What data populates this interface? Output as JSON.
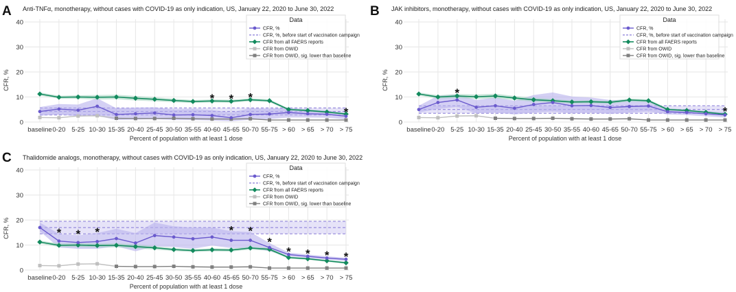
{
  "figure": {
    "x_label": "Percent of population with at least 1 dose",
    "y_label": "CFR, %",
    "legend_title": "Data",
    "legend_items": [
      "CFR, %",
      "CFR, %, before start of vaccination campaign",
      "CFR from all FAERS reports",
      "CFR from OWID",
      "CFR from OWID, sig. lower than baseline"
    ],
    "star_symbol": "*"
  },
  "colors": {
    "cfr": "#6a5acd",
    "cfr_band": "#b7b0ec",
    "faers": "#138a5e",
    "faers_band": "#9fd1bb",
    "owid_light": "#bfbfbf",
    "owid_dark": "#808080"
  },
  "chart_data": [
    {
      "panel": "A",
      "type": "line",
      "title": "Anti-TNFα, monotherapy, without cases with COVID-19 as only indication, US, January 22, 2020 to June 30, 2022",
      "categories": [
        "baseline",
        "0-20",
        "5-25",
        "10-30",
        "15-35",
        "20-40",
        "25-45",
        "30-50",
        "35-55",
        "40-60",
        "45-65",
        "50-70",
        "55-75",
        "> 60",
        "> 65",
        "> 70",
        "> 75"
      ],
      "ylim": [
        0,
        40
      ],
      "yticks": [
        0,
        10,
        20,
        30,
        40
      ],
      "baseline_band": [
        2.8,
        5.6
      ],
      "baseline_line": 4.2,
      "series": [
        {
          "name": "CFR, %",
          "values": [
            4.2,
            5.2,
            4.7,
            6.3,
            3.0,
            3.3,
            3.6,
            2.8,
            2.9,
            2.6,
            1.7,
            3.0,
            3.2,
            3.8,
            3.3,
            3.1,
            2.3
          ],
          "lower": [
            2.5,
            3.0,
            2.2,
            2.5,
            0.8,
            1.0,
            1.2,
            0.8,
            0.8,
            0.6,
            0.3,
            0.9,
            1.2,
            1.8,
            1.8,
            1.7,
            1.1
          ],
          "upper": [
            6.0,
            7.2,
            7.0,
            9.5,
            5.5,
            5.8,
            5.9,
            5.0,
            5.2,
            4.8,
            3.8,
            5.5,
            5.3,
            5.6,
            5.0,
            4.6,
            3.6
          ]
        },
        {
          "name": "CFR from all FAERS reports",
          "values": [
            11.2,
            9.9,
            10.0,
            9.9,
            10.0,
            9.5,
            9.1,
            8.6,
            8.2,
            8.4,
            8.3,
            8.9,
            8.5,
            5.0,
            4.6,
            4.0,
            3.2
          ],
          "lower": [
            10.6,
            9.3,
            9.3,
            9.0,
            9.1,
            8.6,
            8.3,
            7.9,
            7.6,
            7.8,
            7.7,
            8.3,
            7.9,
            4.6,
            4.2,
            3.6,
            2.8
          ],
          "upper": [
            11.8,
            10.5,
            10.7,
            10.8,
            10.9,
            10.4,
            9.9,
            9.3,
            8.8,
            9.0,
            8.9,
            9.5,
            9.1,
            5.4,
            5.0,
            4.4,
            3.6
          ]
        },
        {
          "name": "CFR from OWID",
          "values": [
            1.8,
            1.7,
            2.4,
            2.5,
            null,
            null,
            null,
            null,
            null,
            null,
            null,
            null,
            null,
            null,
            null,
            null,
            null
          ]
        },
        {
          "name": "CFR from OWID, sig. lower than baseline",
          "values": [
            null,
            null,
            null,
            null,
            1.5,
            1.4,
            1.4,
            1.5,
            1.3,
            1.2,
            1.2,
            1.3,
            0.8,
            0.8,
            0.8,
            0.8,
            0.8
          ]
        }
      ],
      "stars": [
        "40-60",
        "45-65",
        "50-70",
        "> 75"
      ]
    },
    {
      "panel": "B",
      "type": "line",
      "title": "JAK inhibitors, monotherapy, without cases with COVID-19 as only indication, US, January 22, 2020 to June 30, 2022",
      "categories": [
        "baseline",
        "0-20",
        "5-25",
        "10-30",
        "15-35",
        "20-40",
        "25-45",
        "30-50",
        "35-55",
        "40-60",
        "45-65",
        "50-70",
        "55-75",
        "> 60",
        "> 65",
        "> 70",
        "> 75"
      ],
      "ylim": [
        0,
        40
      ],
      "yticks": [
        0,
        10,
        20,
        30,
        40
      ],
      "baseline_band": [
        3.5,
        6.5
      ],
      "baseline_line": 5.0,
      "series": [
        {
          "name": "CFR, %",
          "values": [
            5.0,
            7.8,
            8.8,
            5.9,
            6.5,
            5.5,
            7.0,
            7.8,
            6.5,
            6.6,
            5.8,
            6.2,
            6.4,
            4.1,
            3.8,
            3.3,
            2.8
          ],
          "lower": [
            3.8,
            5.2,
            6.0,
            3.5,
            3.8,
            3.0,
            3.8,
            4.2,
            3.5,
            3.8,
            3.2,
            3.8,
            4.2,
            3.0,
            2.8,
            2.3,
            1.8
          ],
          "upper": [
            6.5,
            10.5,
            11.0,
            8.8,
            9.8,
            8.5,
            10.8,
            11.8,
            10.2,
            9.8,
            8.8,
            8.8,
            8.8,
            5.4,
            5.0,
            4.4,
            3.9
          ]
        },
        {
          "name": "CFR from all FAERS reports",
          "values": [
            11.2,
            10.0,
            10.4,
            10.1,
            10.4,
            9.6,
            8.9,
            8.5,
            8.0,
            8.1,
            7.9,
            8.8,
            8.5,
            5.0,
            4.6,
            3.9,
            3.1
          ],
          "lower": [
            10.6,
            9.3,
            9.6,
            9.2,
            9.5,
            8.8,
            8.1,
            7.8,
            7.4,
            7.5,
            7.3,
            8.2,
            7.9,
            4.6,
            4.2,
            3.5,
            2.7
          ],
          "upper": [
            11.8,
            10.7,
            11.2,
            11.0,
            11.3,
            10.4,
            9.7,
            9.2,
            8.6,
            8.7,
            8.5,
            9.4,
            9.1,
            5.4,
            5.0,
            4.3,
            3.5
          ]
        },
        {
          "name": "CFR from OWID",
          "values": [
            1.8,
            1.7,
            2.4,
            2.5,
            null,
            null,
            null,
            null,
            null,
            null,
            null,
            null,
            null,
            null,
            null,
            null,
            null
          ]
        },
        {
          "name": "CFR from OWID, sig. lower than baseline",
          "values": [
            null,
            null,
            null,
            null,
            1.5,
            1.4,
            1.4,
            1.5,
            1.3,
            1.2,
            1.2,
            1.3,
            0.8,
            0.8,
            0.8,
            0.8,
            0.8
          ]
        }
      ],
      "stars": [
        "5-25",
        "> 75"
      ]
    },
    {
      "panel": "C",
      "type": "line",
      "title": "Thalidomide analogs, monotherapy, without cases with COVID-19 as only indication, US, January 22, 2020 to June 30, 2022",
      "categories": [
        "baseline",
        "0-20",
        "5-25",
        "10-30",
        "15-35",
        "20-40",
        "25-45",
        "30-50",
        "35-55",
        "40-60",
        "45-65",
        "50-70",
        "55-75",
        "> 60",
        "> 65",
        "> 70",
        "> 75"
      ],
      "ylim": [
        0,
        40
      ],
      "yticks": [
        0,
        10,
        20,
        30,
        40
      ],
      "baseline_band": [
        14.5,
        19.5
      ],
      "baseline_line": 17.0,
      "series": [
        {
          "name": "CFR, %",
          "values": [
            17.0,
            11.6,
            11.0,
            11.4,
            12.6,
            10.8,
            13.8,
            13.2,
            12.5,
            13.2,
            11.9,
            11.9,
            9.0,
            6.2,
            5.5,
            4.8,
            4.3
          ],
          "lower": [
            15.5,
            9.0,
            8.5,
            8.5,
            9.5,
            7.5,
            9.5,
            9.2,
            8.5,
            9.8,
            8.8,
            8.8,
            7.5,
            5.5,
            4.8,
            4.2,
            3.6
          ],
          "upper": [
            19.0,
            14.5,
            14.0,
            14.8,
            16.5,
            14.8,
            19.0,
            17.5,
            17.0,
            17.0,
            15.5,
            15.2,
            10.8,
            7.0,
            6.2,
            5.5,
            4.9
          ]
        },
        {
          "name": "CFR from all FAERS reports",
          "values": [
            11.2,
            9.9,
            10.0,
            9.8,
            9.9,
            9.4,
            8.9,
            8.2,
            7.8,
            8.1,
            8.0,
            8.8,
            8.3,
            5.0,
            4.5,
            3.7,
            2.9
          ],
          "lower": [
            10.6,
            9.2,
            9.2,
            9.0,
            9.1,
            8.6,
            8.2,
            7.6,
            7.2,
            7.5,
            7.4,
            8.2,
            7.7,
            4.6,
            4.1,
            3.3,
            2.5
          ],
          "upper": [
            11.8,
            10.6,
            10.8,
            10.6,
            10.7,
            10.2,
            9.6,
            8.8,
            8.4,
            8.7,
            8.6,
            9.4,
            8.9,
            5.4,
            4.9,
            4.1,
            3.3
          ]
        },
        {
          "name": "CFR from OWID",
          "values": [
            1.8,
            1.7,
            2.4,
            2.5,
            null,
            null,
            null,
            null,
            null,
            null,
            null,
            null,
            null,
            null,
            null,
            null,
            null
          ]
        },
        {
          "name": "CFR from OWID, sig. lower than baseline",
          "values": [
            null,
            null,
            null,
            null,
            1.5,
            1.4,
            1.4,
            1.5,
            1.3,
            1.2,
            1.2,
            1.3,
            0.8,
            0.8,
            0.8,
            0.8,
            0.8
          ]
        }
      ],
      "stars": [
        "0-20",
        "5-25",
        "10-30",
        "45-65",
        "50-70",
        "55-75",
        "> 60",
        "> 65",
        "> 70",
        "> 75"
      ]
    }
  ]
}
